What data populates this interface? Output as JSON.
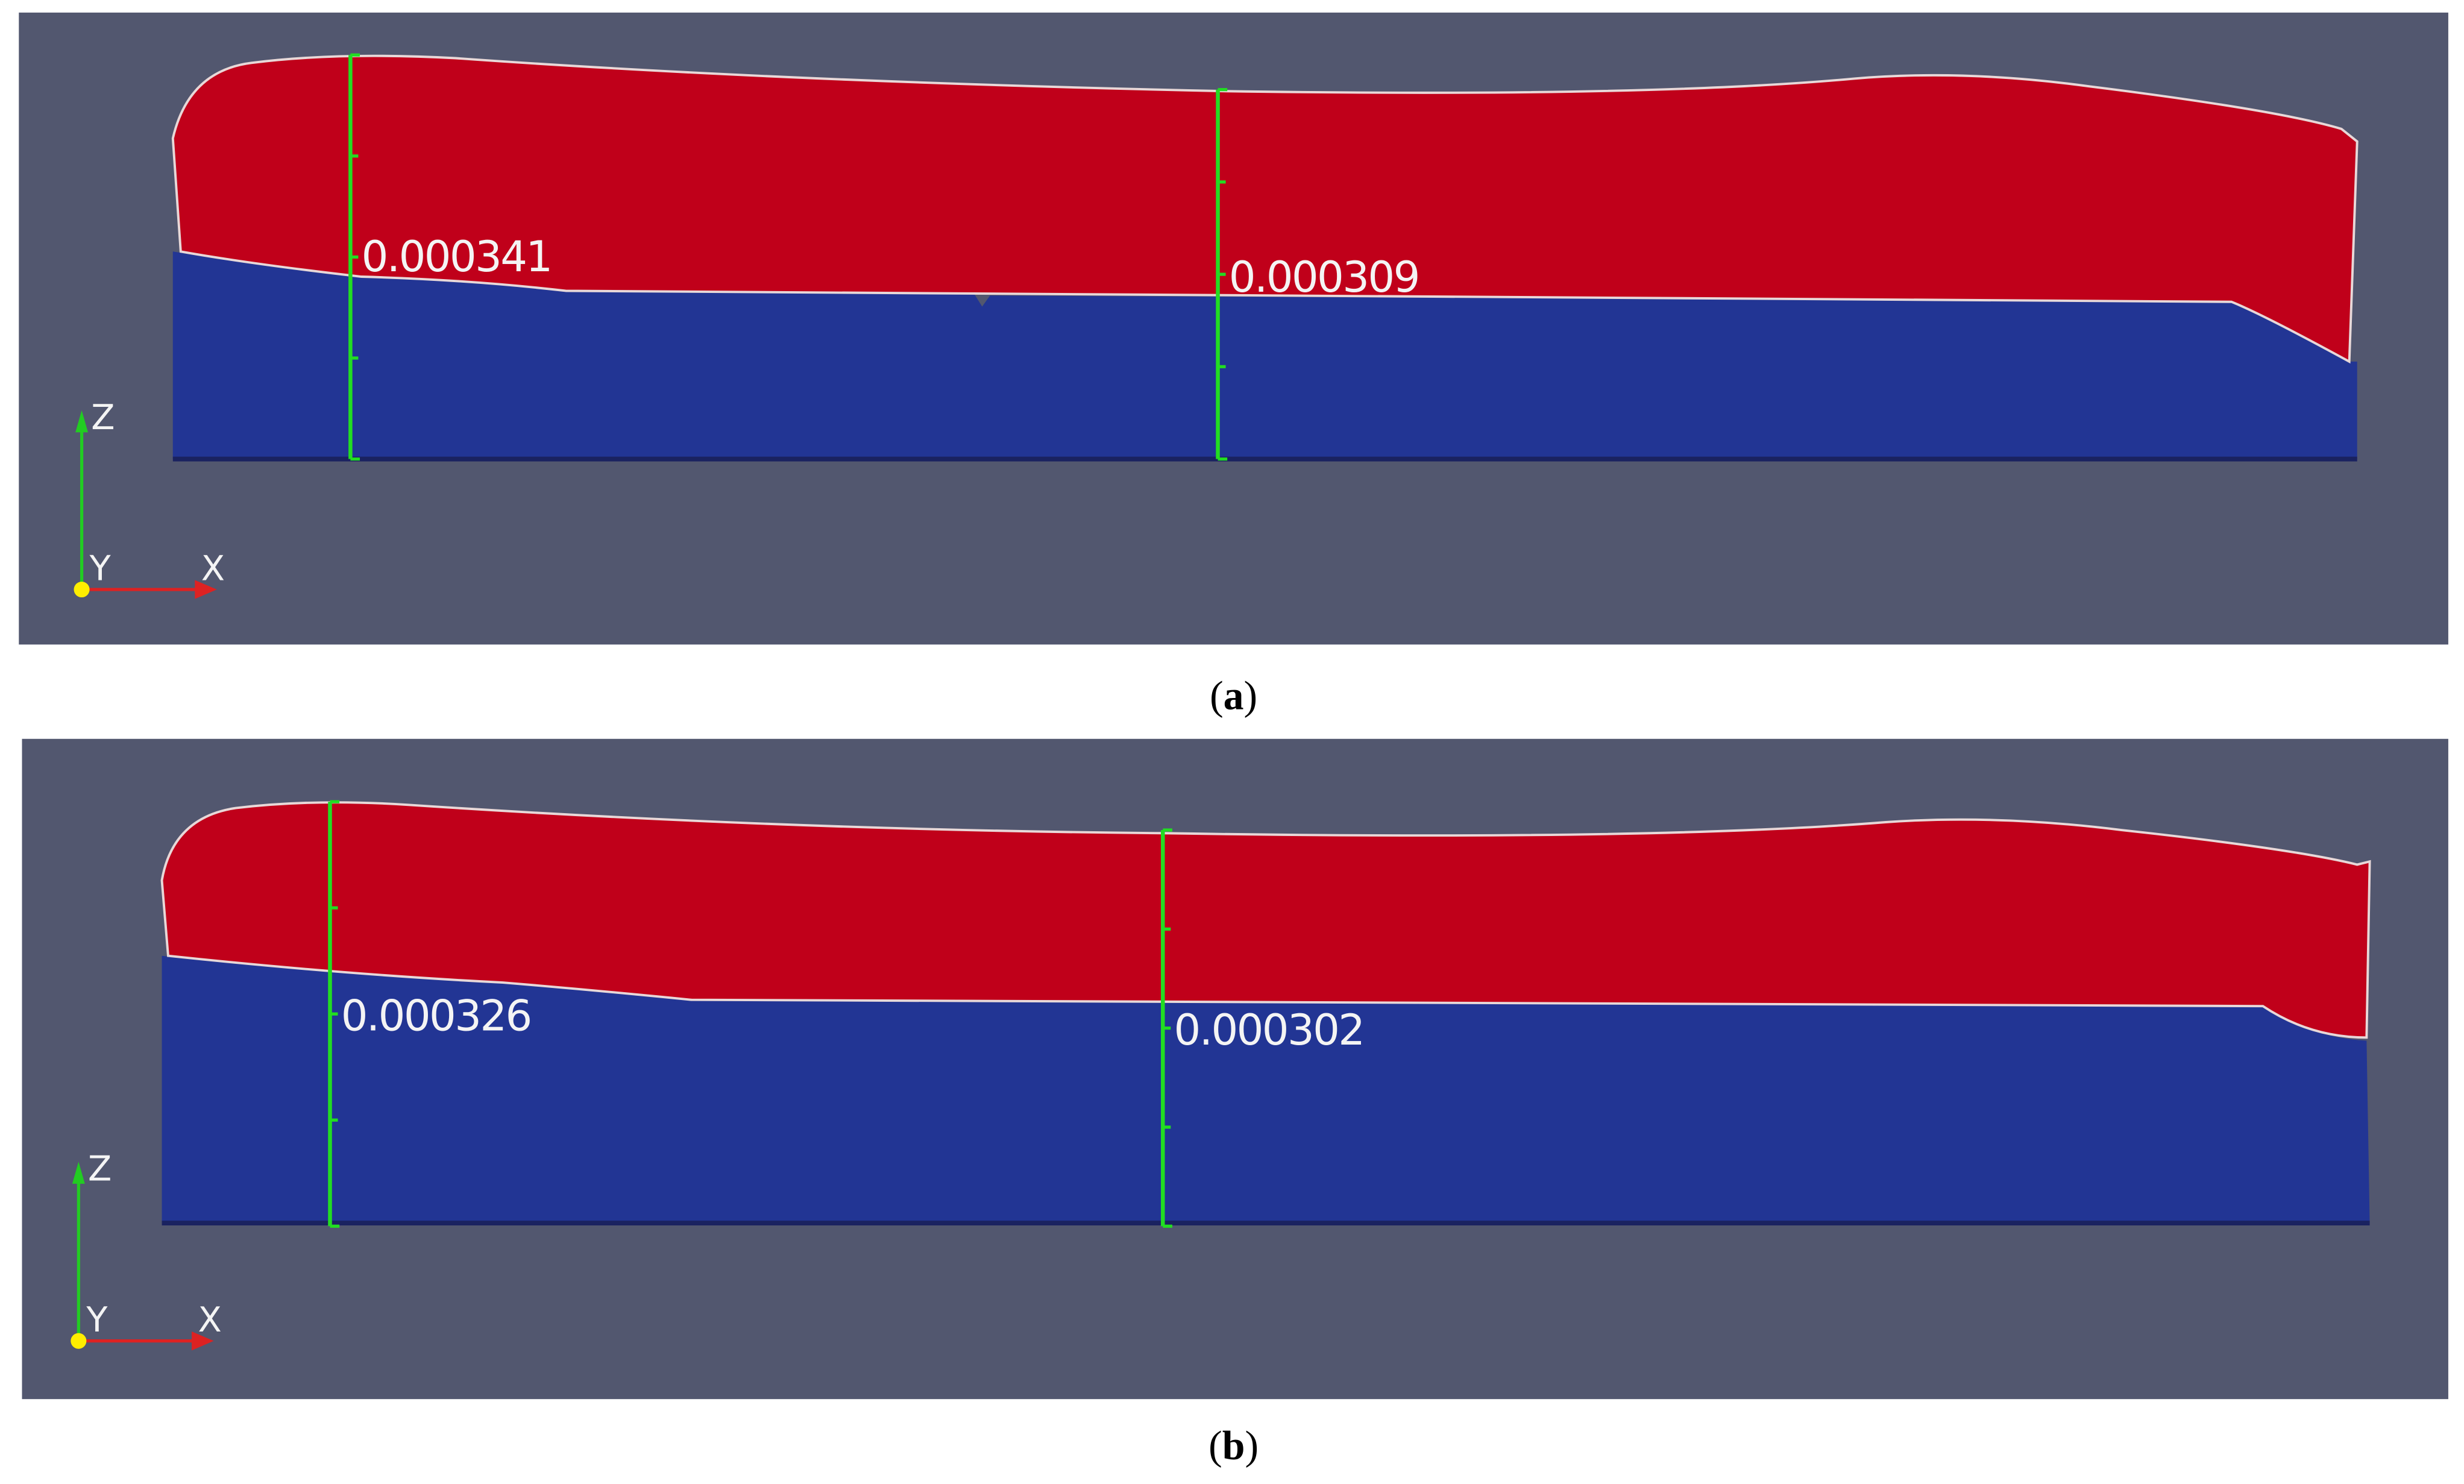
{
  "panels": [
    {
      "caption": [
        "(",
        "a",
        ")"
      ],
      "measurements": [
        "0.000341",
        "0.000309"
      ],
      "axes": {
        "z": "Z",
        "y": "Y",
        "x": "X"
      }
    },
    {
      "caption": [
        "(",
        "b",
        ")"
      ],
      "measurements": [
        "0.000326",
        "0.000302"
      ],
      "axes": {
        "z": "Z",
        "y": "Y",
        "x": "X"
      }
    }
  ]
}
